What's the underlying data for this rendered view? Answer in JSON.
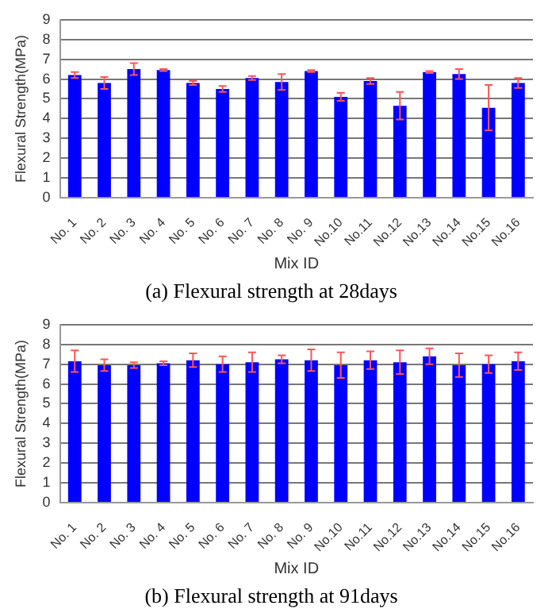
{
  "chart_data": [
    {
      "type": "bar",
      "title": "(a) Flexural strength at 28days",
      "xlabel": "Mix ID",
      "ylabel": "Flexural Strength(MPa)",
      "categories": [
        "No. 1",
        "No. 2",
        "No. 3",
        "No. 4",
        "No. 5",
        "No. 6",
        "No. 7",
        "No. 8",
        "No. 9",
        "No.10",
        "No.11",
        "No.12",
        "No.13",
        "No.14",
        "No.15",
        "No.16"
      ],
      "values": [
        6.2,
        5.8,
        6.5,
        6.45,
        5.8,
        5.5,
        6.05,
        5.85,
        6.4,
        5.1,
        5.9,
        4.65,
        6.35,
        6.25,
        4.55,
        5.8
      ],
      "errors": [
        0.15,
        0.3,
        0.3,
        0.05,
        0.1,
        0.15,
        0.1,
        0.4,
        0.05,
        0.2,
        0.15,
        0.7,
        0.05,
        0.25,
        1.15,
        0.25
      ],
      "color": "#0000ff",
      "ylim": [
        0,
        9
      ],
      "yticks": [
        0,
        1,
        2,
        3,
        4,
        5,
        6,
        7,
        8,
        9
      ],
      "grid": "y",
      "legend": false
    },
    {
      "type": "bar",
      "title": "(b) Flexural strength at 91days",
      "xlabel": "Mix ID",
      "ylabel": "Flexural Strength(MPa)",
      "categories": [
        "No. 1",
        "No. 2",
        "No. 3",
        "No. 4",
        "No. 5",
        "No. 6",
        "No. 7",
        "No. 8",
        "No. 9",
        "No.10",
        "No.11",
        "No.12",
        "No.13",
        "No.14",
        "No.15",
        "No.16"
      ],
      "values": [
        7.15,
        6.95,
        6.95,
        7.05,
        7.2,
        7.0,
        7.1,
        7.25,
        7.2,
        6.95,
        7.2,
        7.1,
        7.4,
        6.95,
        7.0,
        7.15
      ],
      "errors": [
        0.55,
        0.3,
        0.15,
        0.1,
        0.35,
        0.4,
        0.5,
        0.2,
        0.55,
        0.65,
        0.45,
        0.6,
        0.4,
        0.6,
        0.45,
        0.45
      ],
      "color": "#0000ff",
      "ylim": [
        0,
        9
      ],
      "yticks": [
        0,
        1,
        2,
        3,
        4,
        5,
        6,
        7,
        8,
        9
      ],
      "grid": "y",
      "legend": false
    }
  ]
}
